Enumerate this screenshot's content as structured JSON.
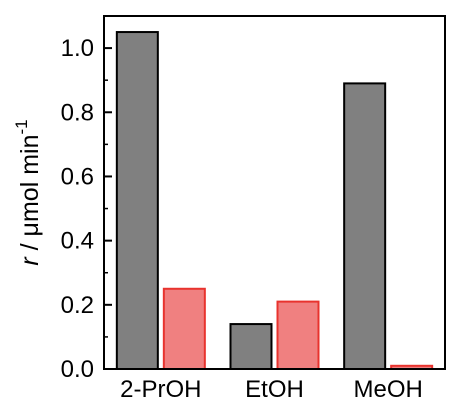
{
  "chart_data": {
    "type": "bar",
    "categories": [
      "2-PrOH",
      "EtOH",
      "MeOH"
    ],
    "series": [
      {
        "values": [
          1.05,
          0.14,
          0.89
        ],
        "fill": "#808080",
        "stroke": "#000000"
      },
      {
        "values": [
          0.25,
          0.21,
          0.01
        ],
        "fill": "#f08080",
        "stroke": "#e8332e"
      }
    ],
    "ylim": [
      0.0,
      1.1
    ],
    "yticks": [
      0.0,
      0.2,
      0.4,
      0.6,
      0.8,
      1.0
    ],
    "ytick_labels": [
      "0.0",
      "0.2",
      "0.4",
      "0.6",
      "0.8",
      "1.0"
    ],
    "ylabel": {
      "italic": "r",
      "rest": " / μmol min",
      "superscript": "-1"
    },
    "xlabel": "",
    "title": "",
    "grid": false,
    "legend": "none"
  }
}
